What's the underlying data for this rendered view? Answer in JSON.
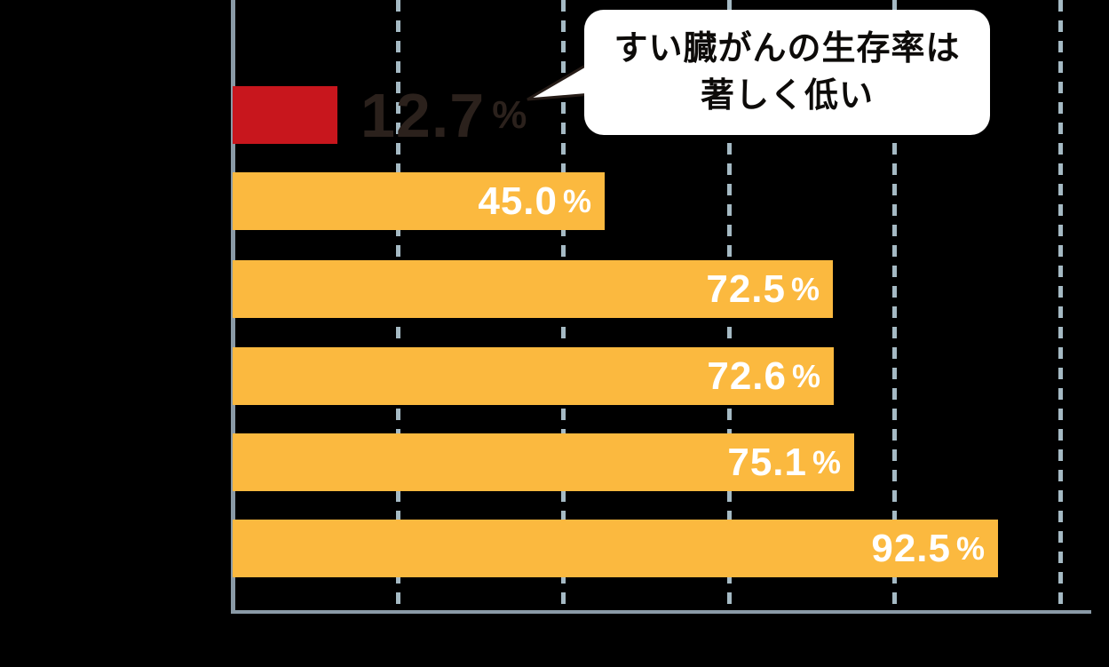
{
  "chart_data": {
    "type": "bar",
    "orientation": "horizontal",
    "title": "",
    "values": [
      12.7,
      45.0,
      72.5,
      72.6,
      75.1,
      92.5
    ],
    "bars": [
      {
        "value": 12.7,
        "num": "12.7",
        "pct": "%",
        "color": "#C8161D",
        "label_color": "#2B211C",
        "label_position": "outside"
      },
      {
        "value": 45.0,
        "num": "45.0",
        "pct": "%",
        "color": "#FBB93F",
        "label_color": "#FFFFFF",
        "label_position": "inside"
      },
      {
        "value": 72.5,
        "num": "72.5",
        "pct": "%",
        "color": "#FBB93F",
        "label_color": "#FFFFFF",
        "label_position": "inside"
      },
      {
        "value": 72.6,
        "num": "72.6",
        "pct": "%",
        "color": "#FBB93F",
        "label_color": "#FFFFFF",
        "label_position": "inside"
      },
      {
        "value": 75.1,
        "num": "75.1",
        "pct": "%",
        "color": "#FBB93F",
        "label_color": "#FFFFFF",
        "label_position": "inside"
      },
      {
        "value": 92.5,
        "num": "92.5",
        "pct": "%",
        "color": "#FBB93F",
        "label_color": "#FFFFFF",
        "label_position": "inside"
      }
    ],
    "xlim": [
      0,
      100
    ],
    "gridlines_at": [
      20,
      40,
      60,
      80,
      100
    ],
    "grid_style": "dashed-vertical",
    "axis_color": "#8A9AA6",
    "gridline_color": "#A5BAC4",
    "background_color": "#000000",
    "bar_red": "#C8161D",
    "bar_yellow": "#FBB93F",
    "annotation": {
      "line1": "すい臓がんの生存率は",
      "line2": "著しく低い",
      "bg_color": "#FFFFFF",
      "text_color": "#0D0B09"
    }
  }
}
